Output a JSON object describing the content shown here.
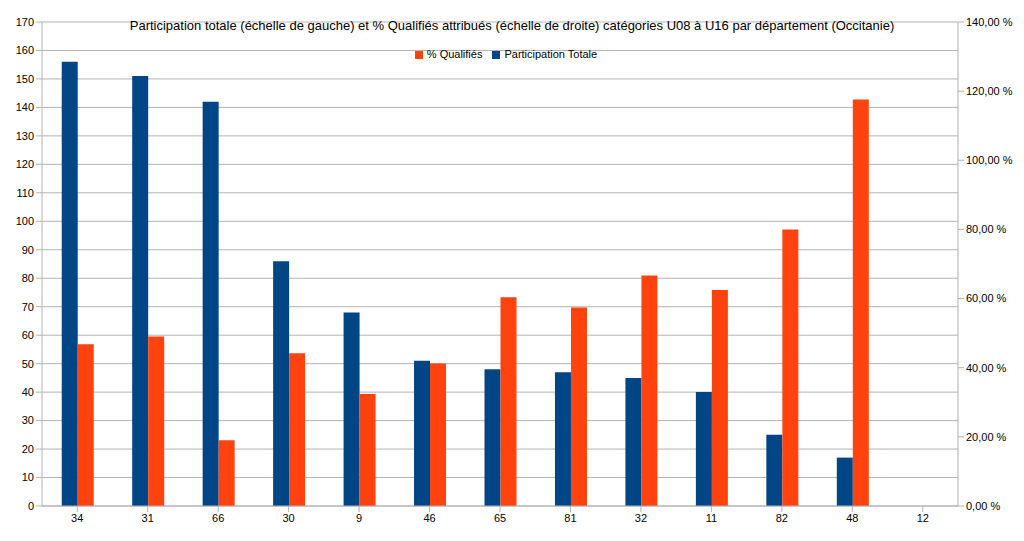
{
  "chart_data": {
    "type": "bar",
    "title": "Participation totale (échelle de gauche) et % Qualifiés attribués (échelle de droite) catégories U08 à U16 par département (Occitanie)",
    "categories": [
      "34",
      "31",
      "66",
      "30",
      "9",
      "46",
      "65",
      "81",
      "32",
      "11",
      "82",
      "48",
      "12"
    ],
    "series": [
      {
        "name": "Participation Totale",
        "color": "#004586",
        "values": [
          156,
          151,
          142,
          86,
          68,
          51,
          48,
          47,
          45,
          40,
          25,
          17,
          null
        ]
      },
      {
        "name": "% Qualifiés",
        "color": "#ff420e",
        "axis": "y2",
        "values": [
          46.8,
          49,
          19,
          44.2,
          32.4,
          41.2,
          60.4,
          57.4,
          66.7,
          62.5,
          80,
          117.6,
          null
        ]
      }
    ],
    "ylim": [
      0,
      170
    ],
    "yticks": [
      0,
      10,
      20,
      30,
      40,
      50,
      60,
      70,
      80,
      90,
      100,
      110,
      120,
      130,
      140,
      150,
      160,
      170
    ],
    "y2lim": [
      0,
      140
    ],
    "y2ticks": [
      {
        "value": 0,
        "label": "0,00 %"
      },
      {
        "value": 20,
        "label": "20,00 %"
      },
      {
        "value": 40,
        "label": "40,00 %"
      },
      {
        "value": 60,
        "label": "60,00 %"
      },
      {
        "value": 80,
        "label": "80,00 %"
      },
      {
        "value": 100,
        "label": "100,00 %"
      },
      {
        "value": 120,
        "label": "120,00 %"
      },
      {
        "value": 140,
        "label": "140,00 %"
      }
    ],
    "grid": true,
    "legend": "top"
  }
}
